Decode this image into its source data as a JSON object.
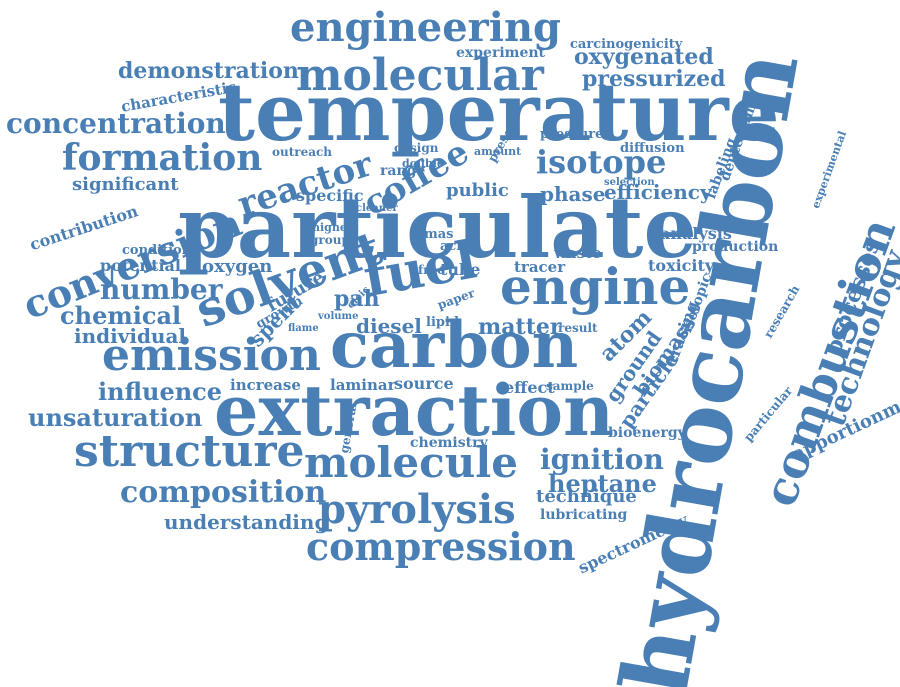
{
  "color": "#4a7fb5",
  "words": [
    "hydrocarbon",
    "particulate",
    "temperature",
    "extraction",
    "carbon",
    "emission",
    "combustion",
    "molecular",
    "engineering",
    "engine",
    "fuel",
    "solvent",
    "structure",
    "molecule",
    "pyrolysis",
    "compression",
    "conversion",
    "formation",
    "reactor",
    "concentration",
    "coffee",
    "isotope",
    "composition",
    "technology",
    "demonstration",
    "unsaturation",
    "understanding",
    "ignition",
    "heptane",
    "number",
    "chemical",
    "individual",
    "influence",
    "processes",
    "apportionment",
    "pressurized",
    "oxygenated",
    "carcinogenicity",
    "experiment",
    "characteristic",
    "significant",
    "contribution",
    "potential",
    "condition",
    "oxygen",
    "diesel",
    "matter",
    "atom",
    "ground",
    "biomass",
    "particle",
    "tracing",
    "efficiency",
    "phase",
    "public",
    "analysis",
    "production",
    "toxicity",
    "laminar",
    "source",
    "increase",
    "chemistry",
    "effect",
    "sample",
    "bioenergy",
    "technique",
    "lubricating",
    "spectrometry",
    "deuterium",
    "labeling",
    "diffusion",
    "pressure",
    "tracer",
    "waste",
    "isotopic",
    "research",
    "particular",
    "experimental",
    "specific",
    "range",
    "design",
    "outreach",
    "double",
    "present",
    "selection",
    "amount",
    "general",
    "spent",
    "future",
    "growth",
    "lipid",
    "result",
    "mas",
    "acid",
    "tube",
    "free",
    "paper",
    "flame",
    "volume",
    "oleic",
    "group",
    "highest",
    "cleaner",
    "pah"
  ]
}
